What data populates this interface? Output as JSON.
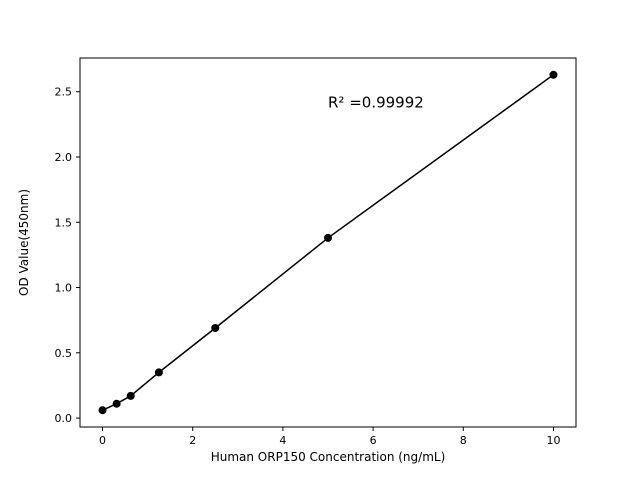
{
  "figure": {
    "background": "#ffffff",
    "axis_color": "#000000",
    "line_color": "#000000",
    "marker_color": "#000000"
  },
  "chart_data": {
    "type": "line",
    "subtype": "scatter-with-fit-line",
    "x": [
      0,
      0.3125,
      0.625,
      1.25,
      2.5,
      5,
      10
    ],
    "y": [
      0.06,
      0.11,
      0.17,
      0.35,
      0.69,
      1.38,
      2.63
    ],
    "title": "",
    "xlabel": "Human ORP150 Concentration (ng/mL)",
    "ylabel": "OD Value(450nm)",
    "xticks": [
      0,
      2,
      4,
      6,
      8,
      10
    ],
    "xtick_labels": [
      "0",
      "2",
      "4",
      "6",
      "8",
      "10"
    ],
    "yticks": [
      0.0,
      0.5,
      1.0,
      1.5,
      2.0,
      2.5
    ],
    "ytick_labels": [
      "0.0",
      "0.5",
      "1.0",
      "1.5",
      "2.0",
      "2.5"
    ],
    "xlim": [
      -0.5,
      10.5
    ],
    "ylim": [
      -0.0685,
      2.7585
    ],
    "grid": false,
    "legend": null,
    "annotation": {
      "text": "R² =0.99992",
      "x": 5.0,
      "y": 2.38
    }
  }
}
